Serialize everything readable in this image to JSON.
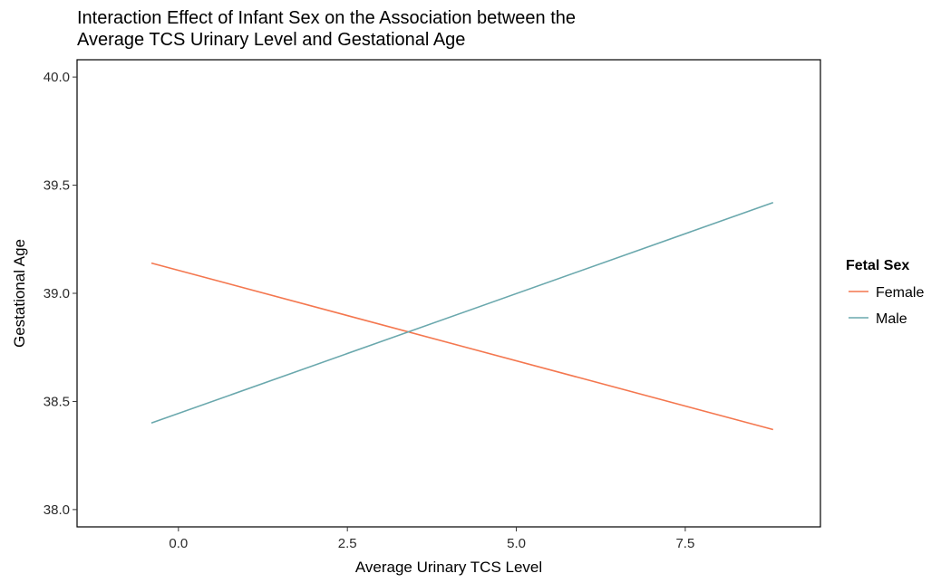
{
  "chart_data": {
    "type": "line",
    "title_lines": [
      "Interaction Effect of Infant Sex on the Association between the",
      "Average TCS Urinary Level and Gestational Age"
    ],
    "xlabel": "Average Urinary TCS Level",
    "ylabel": "Gestational Age",
    "xlim": [
      -1.5,
      9.5
    ],
    "ylim": [
      37.92,
      40.08
    ],
    "x_ticks": [
      0.0,
      2.5,
      5.0,
      7.5
    ],
    "x_tick_labels": [
      "0.0",
      "2.5",
      "5.0",
      "7.5"
    ],
    "y_ticks": [
      38.0,
      38.5,
      39.0,
      39.5,
      40.0
    ],
    "y_tick_labels": [
      "38.0",
      "38.5",
      "39.0",
      "39.5",
      "40.0"
    ],
    "grid": false,
    "legend": {
      "title": "Fetal Sex",
      "placement": "right"
    },
    "series": [
      {
        "name": "Female",
        "color": "#f4774f",
        "x": [
          -0.4,
          8.8
        ],
        "y": [
          39.14,
          38.37
        ]
      },
      {
        "name": "Male",
        "color": "#6aa8ad",
        "x": [
          -0.4,
          8.8
        ],
        "y": [
          38.4,
          39.42
        ]
      }
    ]
  }
}
